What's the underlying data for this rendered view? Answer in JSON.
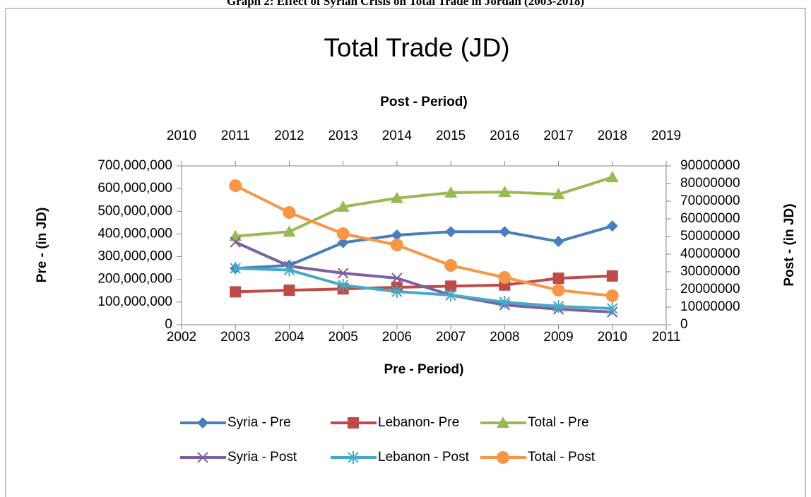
{
  "caption": "Graph 2: Effect of Syrian Crisis on Total Trade in Jordan (2003-2018)",
  "chart_data": {
    "type": "line",
    "title": "Total Trade (JD)",
    "x_label": "Pre - Period)",
    "x2_label": "Post - Period)",
    "y_label": "Pre - (in JD)",
    "y2_label": "Post - (in JD)",
    "x": [
      2003,
      2004,
      2005,
      2006,
      2007,
      2008,
      2009,
      2010
    ],
    "x2": [
      2011,
      2012,
      2013,
      2014,
      2015,
      2016,
      2017,
      2018
    ],
    "xlim": [
      2002,
      2011
    ],
    "xticks": [
      2002,
      2003,
      2004,
      2005,
      2006,
      2007,
      2008,
      2009,
      2010,
      2011
    ],
    "x2lim": [
      2010,
      2019
    ],
    "x2ticks": [
      2010,
      2011,
      2012,
      2013,
      2014,
      2015,
      2016,
      2017,
      2018,
      2019
    ],
    "ylim": [
      0,
      700000000
    ],
    "yticks": [
      0,
      {
        "value": 100000000,
        "label": "100,000,000"
      },
      {
        "value": 200000000,
        "label": "200,000,000"
      },
      {
        "value": 300000000,
        "label": "300,000,000"
      },
      {
        "value": 400000000,
        "label": "400,000,000"
      },
      {
        "value": 500000000,
        "label": "500,000,000"
      },
      {
        "value": 600000000,
        "label": "600,000,000"
      },
      {
        "value": 700000000,
        "label": "700,000,000"
      }
    ],
    "y2lim": [
      0,
      90000000
    ],
    "y2ticks": [
      0,
      10000000,
      20000000,
      30000000,
      40000000,
      50000000,
      60000000,
      70000000,
      80000000,
      90000000
    ],
    "legend": "bottom",
    "series": [
      {
        "name": "Syria - Pre",
        "color": "#4a7ebb",
        "marker": "diamond",
        "values": [
          248000000,
          262000000,
          362000000,
          395000000,
          410000000,
          410000000,
          367000000,
          435000000
        ]
      },
      {
        "name": "Lebanon- Pre",
        "color": "#be4b48",
        "marker": "square",
        "values": [
          145000000,
          152000000,
          158000000,
          165000000,
          170000000,
          175000000,
          205000000,
          215000000
        ]
      },
      {
        "name": "Total - Pre",
        "color": "#98b954",
        "marker": "triangle",
        "values": [
          390000000,
          410000000,
          520000000,
          558000000,
          582000000,
          585000000,
          575000000,
          650000000
        ]
      },
      {
        "name": "Syria - Post",
        "color": "#7d60a0",
        "marker": "x",
        "axis": "y2",
        "values": [
          46800000,
          33200000,
          29200000,
          26400000,
          16800000,
          11200000,
          8800000,
          7200000
        ]
      },
      {
        "name": "Lebanon - Post",
        "color": "#46aac5",
        "marker": "star",
        "axis": "y2",
        "values": [
          32000000,
          31000000,
          22400000,
          18800000,
          16800000,
          12800000,
          10400000,
          9200000
        ]
      },
      {
        "name": "Total - Post",
        "color": "#f79646",
        "marker": "circle",
        "axis": "y2",
        "values": [
          78800000,
          63600000,
          51600000,
          45200000,
          33600000,
          26800000,
          19600000,
          16400000
        ]
      }
    ]
  }
}
